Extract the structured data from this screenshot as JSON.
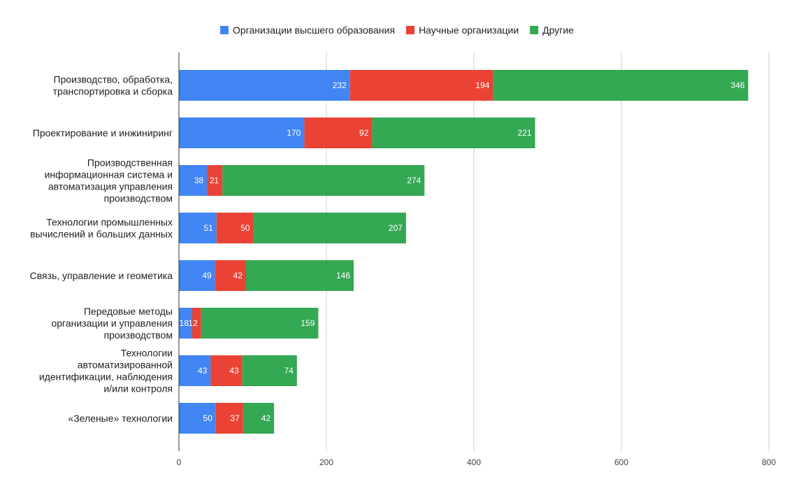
{
  "chart_data": {
    "type": "bar",
    "orientation": "horizontal",
    "stacked": true,
    "categories": [
      [
        "Производство, обработка,",
        "транспортировка и сборка"
      ],
      [
        "Проектирование и инжиниринг"
      ],
      [
        "Производственная",
        "информационная система и",
        "автоматизация управления",
        "производством"
      ],
      [
        "Технологии промышленных",
        "вычислений и больших данных"
      ],
      [
        "Связь, управление и геометика"
      ],
      [
        "Передовые методы",
        "организации и управления",
        "производством"
      ],
      [
        "Технологии",
        "автоматизированной",
        "идентификации, наблюдения",
        "и/или контроля"
      ],
      [
        "«Зеленые» технологии"
      ]
    ],
    "series": [
      {
        "name": "Организации высшего образования",
        "color": "#4285f4",
        "values": [
          232,
          170,
          38,
          51,
          49,
          18,
          43,
          50
        ]
      },
      {
        "name": "Научные организации",
        "color": "#ea4335",
        "values": [
          194,
          92,
          21,
          50,
          42,
          12,
          43,
          37
        ]
      },
      {
        "name": "Другие",
        "color": "#34a853",
        "values": [
          346,
          221,
          274,
          207,
          146,
          159,
          74,
          42
        ]
      }
    ],
    "xlim": [
      0,
      800
    ],
    "xticks": [
      0,
      200,
      400,
      600,
      800
    ],
    "grid": true,
    "legend_position": "top",
    "data_labels": true
  }
}
